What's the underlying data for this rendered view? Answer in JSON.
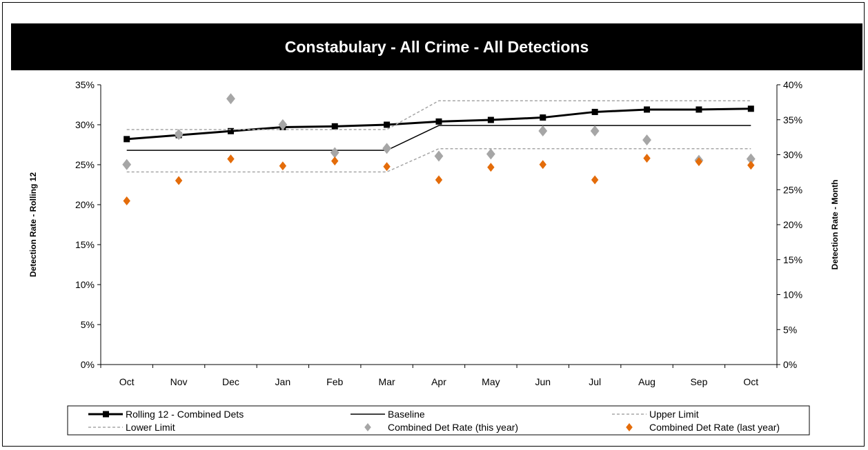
{
  "chart_data": {
    "type": "line",
    "title": "Constabulary - All Crime - All Detections",
    "categories": [
      "Oct",
      "Nov",
      "Dec",
      "Jan",
      "Feb",
      "Mar",
      "Apr",
      "May",
      "Jun",
      "Jul",
      "Aug",
      "Sep",
      "Oct"
    ],
    "y_left": {
      "label": "Detection Rate - Rolling 12",
      "min": 0,
      "max": 35,
      "step": 5,
      "tick_labels": [
        "0%",
        "5%",
        "10%",
        "15%",
        "20%",
        "25%",
        "30%",
        "35%"
      ]
    },
    "y_right": {
      "label": "Detection Rate - Month",
      "min": 0,
      "max": 40,
      "step": 5,
      "tick_labels": [
        "0%",
        "5%",
        "10%",
        "15%",
        "20%",
        "25%",
        "30%",
        "35%",
        "40%"
      ]
    },
    "grid": false,
    "legend_position": "bottom",
    "series": [
      {
        "name": "Rolling 12 - Combined Dets",
        "axis": "left",
        "style": "line-marker",
        "color": "#000000",
        "values": [
          28.2,
          28.7,
          29.2,
          29.7,
          29.8,
          30.0,
          30.4,
          30.6,
          30.9,
          31.6,
          31.9,
          31.9,
          32.0
        ]
      },
      {
        "name": "Baseline",
        "axis": "left",
        "style": "line",
        "color": "#000000",
        "values": [
          26.8,
          26.8,
          26.8,
          26.8,
          26.8,
          26.8,
          29.9,
          29.9,
          29.9,
          29.9,
          29.9,
          29.9,
          29.9
        ]
      },
      {
        "name": "Upper Limit",
        "axis": "left",
        "style": "dashed",
        "color": "#a6a6a6",
        "values": [
          29.4,
          29.4,
          29.4,
          29.4,
          29.4,
          29.4,
          33.0,
          33.0,
          33.0,
          33.0,
          33.0,
          33.0,
          33.0
        ]
      },
      {
        "name": "Lower Limit",
        "axis": "left",
        "style": "dashed",
        "color": "#a6a6a6",
        "values": [
          24.1,
          24.1,
          24.1,
          24.1,
          24.1,
          24.1,
          27.0,
          27.0,
          27.0,
          27.0,
          27.0,
          27.0,
          27.0
        ]
      },
      {
        "name": "Combined Det Rate (this year)",
        "axis": "right",
        "style": "diamond",
        "color": "#a6a6a6",
        "values": [
          28.6,
          32.9,
          38.0,
          34.3,
          30.3,
          30.9,
          29.8,
          30.1,
          33.4,
          33.4,
          32.1,
          29.2,
          29.4
        ]
      },
      {
        "name": "Combined Det Rate (last year)",
        "axis": "right",
        "style": "diamond",
        "color": "#e46c0a",
        "values": [
          23.4,
          26.3,
          29.4,
          28.4,
          29.1,
          28.3,
          26.4,
          28.2,
          28.6,
          26.4,
          29.5,
          29.0,
          28.5
        ]
      }
    ]
  }
}
